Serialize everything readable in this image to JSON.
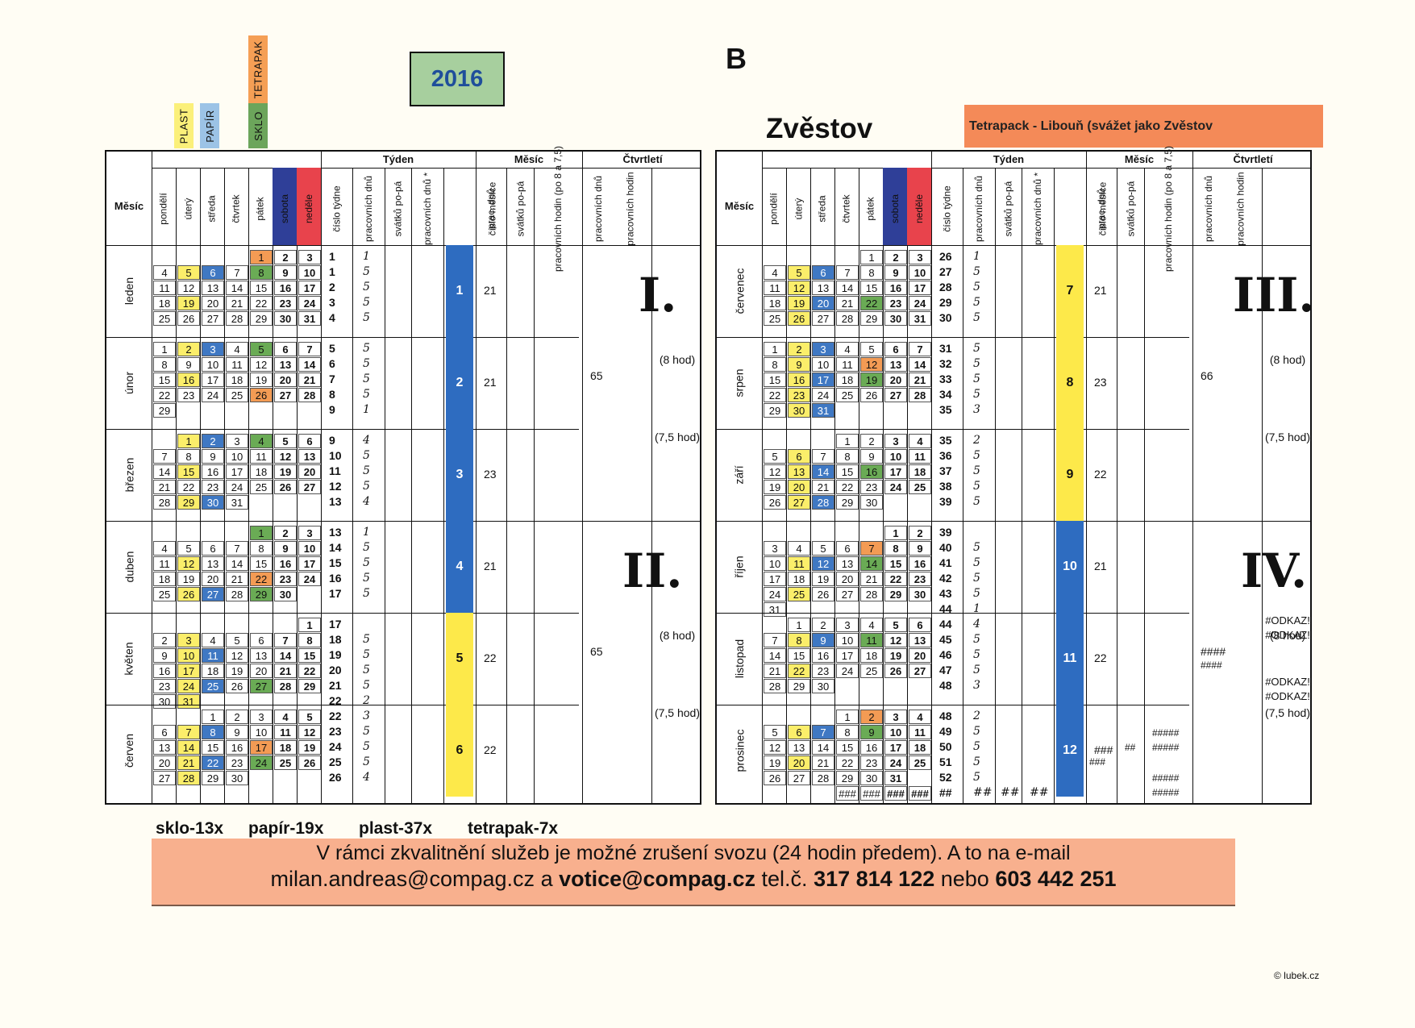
{
  "year": "2016",
  "zone": "B",
  "town": "Zvěstov",
  "tetrapack_note": "Tetrapack - Libouň (svážet jako Zvěstov",
  "legend": [
    {
      "label": "PLAST",
      "color": "#fbf07a"
    },
    {
      "label": "PAPÍR",
      "color": "#9cc3e6"
    },
    {
      "label": "SKLO",
      "color": "#6ca55b"
    },
    {
      "label": "TETRAPAK",
      "color": "#f59f55"
    }
  ],
  "colors": {
    "plast": "#fbee6a",
    "papir": "#3f78c3",
    "sklo": "#6aab55",
    "tetrapak": "#f39b54",
    "sobota": "#2f3f98",
    "nedele": "#e8434c",
    "month_yellow": "#fde94a",
    "month_blue": "#2e6cc0"
  },
  "headers": {
    "mesic": "Měsíc",
    "tyden": "Týden",
    "mesic_group": "Měsíc",
    "ctvrtleti": "Čtvrtletí",
    "days": [
      "pondělí",
      "úterý",
      "středa",
      "čtvrtek",
      "pátek",
      "sobota",
      "neděle"
    ],
    "week_cols": [
      "číslo týdne",
      "pracovních dnů",
      "svátků po-pá",
      "pracovních dnů *"
    ],
    "month_cols": [
      "číslo měsíce",
      "prac. dnů",
      "svátků po-pá",
      "pracovních hodin (po 8 a 7,5)"
    ],
    "quarter_cols": [
      "pracovních dnů",
      "pracovních hodin"
    ]
  },
  "left_months": [
    {
      "name": "leden",
      "num": "1",
      "color": "blue",
      "workdays": "21",
      "rows": [
        [
          "",
          "",
          "",
          "",
          "1",
          "2",
          "3"
        ],
        [
          "4",
          "5",
          "6",
          "7",
          "8",
          "9",
          "10"
        ],
        [
          "11",
          "12",
          "13",
          "14",
          "15",
          "16",
          "17"
        ],
        [
          "18",
          "19",
          "20",
          "21",
          "22",
          "23",
          "24"
        ],
        [
          "25",
          "26",
          "27",
          "28",
          "29",
          "30",
          "31"
        ]
      ],
      "weeks": [
        [
          "1",
          "1"
        ],
        [
          "1",
          "5"
        ],
        [
          "2",
          "5"
        ],
        [
          "3",
          "5"
        ],
        [
          "4",
          "5"
        ]
      ],
      "marks": {
        "0-4": "tetrapak",
        "1-1": "plast",
        "1-2": "papir",
        "1-4": "sklo",
        "3-1": "plast"
      }
    },
    {
      "name": "únor",
      "num": "2",
      "color": "blue",
      "workdays": "21",
      "rows": [
        [
          "1",
          "2",
          "3",
          "4",
          "5",
          "6",
          "7"
        ],
        [
          "8",
          "9",
          "10",
          "11",
          "12",
          "13",
          "14"
        ],
        [
          "15",
          "16",
          "17",
          "18",
          "19",
          "20",
          "21"
        ],
        [
          "22",
          "23",
          "24",
          "25",
          "26",
          "27",
          "28"
        ],
        [
          "29",
          "",
          "",
          "",
          "",
          "",
          ""
        ]
      ],
      "weeks": [
        [
          "5",
          "5"
        ],
        [
          "6",
          "5"
        ],
        [
          "7",
          "5"
        ],
        [
          "8",
          "5"
        ],
        [
          "9",
          "1"
        ]
      ],
      "marks": {
        "0-1": "plast",
        "0-2": "papir",
        "0-4": "sklo",
        "2-1": "plast",
        "3-4": "tetrapak"
      }
    },
    {
      "name": "březen",
      "num": "3",
      "color": "blue",
      "workdays": "23",
      "rows": [
        [
          "",
          "1",
          "2",
          "3",
          "4",
          "5",
          "6"
        ],
        [
          "7",
          "8",
          "9",
          "10",
          "11",
          "12",
          "13"
        ],
        [
          "14",
          "15",
          "16",
          "17",
          "18",
          "19",
          "20"
        ],
        [
          "21",
          "22",
          "23",
          "24",
          "25",
          "26",
          "27"
        ],
        [
          "28",
          "29",
          "30",
          "31",
          "",
          "",
          ""
        ]
      ],
      "weeks": [
        [
          "9",
          "4"
        ],
        [
          "10",
          "5"
        ],
        [
          "11",
          "5"
        ],
        [
          "12",
          "5"
        ],
        [
          "13",
          "4"
        ]
      ],
      "marks": {
        "0-1": "plast",
        "0-2": "papir",
        "0-4": "sklo",
        "2-1": "plast",
        "4-1": "plast",
        "4-2": "papir"
      }
    },
    {
      "name": "duben",
      "num": "4",
      "color": "blue",
      "workdays": "21",
      "rows": [
        [
          "",
          "",
          "",
          "",
          "1",
          "2",
          "3"
        ],
        [
          "4",
          "5",
          "6",
          "7",
          "8",
          "9",
          "10"
        ],
        [
          "11",
          "12",
          "13",
          "14",
          "15",
          "16",
          "17"
        ],
        [
          "18",
          "19",
          "20",
          "21",
          "22",
          "23",
          "24"
        ],
        [
          "25",
          "26",
          "27",
          "28",
          "29",
          "30",
          ""
        ]
      ],
      "weeks": [
        [
          "13",
          "1"
        ],
        [
          "14",
          "5"
        ],
        [
          "15",
          "5"
        ],
        [
          "16",
          "5"
        ],
        [
          "17",
          "5"
        ]
      ],
      "marks": {
        "0-4": "sklo",
        "2-1": "plast",
        "3-4": "tetrapak",
        "4-1": "plast",
        "4-2": "papir",
        "4-4": "sklo"
      }
    },
    {
      "name": "květen",
      "num": "5",
      "color": "yellow",
      "workdays": "22",
      "rows": [
        [
          "",
          "",
          "",
          "",
          "",
          "",
          "1"
        ],
        [
          "2",
          "3",
          "4",
          "5",
          "6",
          "7",
          "8"
        ],
        [
          "9",
          "10",
          "11",
          "12",
          "13",
          "14",
          "15"
        ],
        [
          "16",
          "17",
          "18",
          "19",
          "20",
          "21",
          "22"
        ],
        [
          "23",
          "24",
          "25",
          "26",
          "27",
          "28",
          "29"
        ],
        [
          "30",
          "31",
          "",
          "",
          "",
          "",
          ""
        ]
      ],
      "weeks": [
        [
          "17",
          ""
        ],
        [
          "18",
          "5"
        ],
        [
          "19",
          "5"
        ],
        [
          "20",
          "5"
        ],
        [
          "21",
          "5"
        ],
        [
          "22",
          "2"
        ]
      ],
      "marks": {
        "1-1": "plast",
        "2-1": "plast",
        "2-2": "papir",
        "3-1": "plast",
        "4-1": "plast",
        "4-2": "papir",
        "4-4": "sklo",
        "5-1": "plast"
      }
    },
    {
      "name": "červen",
      "num": "6",
      "color": "yellow",
      "workdays": "22",
      "rows": [
        [
          "",
          "",
          "1",
          "2",
          "3",
          "4",
          "5"
        ],
        [
          "6",
          "7",
          "8",
          "9",
          "10",
          "11",
          "12"
        ],
        [
          "13",
          "14",
          "15",
          "16",
          "17",
          "18",
          "19"
        ],
        [
          "20",
          "21",
          "22",
          "23",
          "24",
          "25",
          "26"
        ],
        [
          "27",
          "28",
          "29",
          "30",
          "",
          "",
          ""
        ]
      ],
      "weeks": [
        [
          "22",
          "3"
        ],
        [
          "23",
          "5"
        ],
        [
          "24",
          "5"
        ],
        [
          "25",
          "5"
        ],
        [
          "26",
          "4"
        ]
      ],
      "marks": {
        "1-1": "plast",
        "1-2": "papir",
        "2-1": "plast",
        "2-4": "tetrapak",
        "3-1": "plast",
        "3-2": "papir",
        "3-4": "sklo",
        "4-1": "plast"
      }
    }
  ],
  "right_months": [
    {
      "name": "červenec",
      "num": "7",
      "color": "yellow",
      "workdays": "21",
      "rows": [
        [
          "",
          "",
          "",
          "",
          "1",
          "2",
          "3"
        ],
        [
          "4",
          "5",
          "6",
          "7",
          "8",
          "9",
          "10"
        ],
        [
          "11",
          "12",
          "13",
          "14",
          "15",
          "16",
          "17"
        ],
        [
          "18",
          "19",
          "20",
          "21",
          "22",
          "23",
          "24"
        ],
        [
          "25",
          "26",
          "27",
          "28",
          "29",
          "30",
          "31"
        ]
      ],
      "weeks": [
        [
          "26",
          "1"
        ],
        [
          "27",
          "5"
        ],
        [
          "28",
          "5"
        ],
        [
          "29",
          "5"
        ],
        [
          "30",
          "5"
        ]
      ],
      "marks": {
        "1-1": "plast",
        "1-2": "papir",
        "2-1": "plast",
        "3-1": "plast",
        "3-2": "papir",
        "3-4": "sklo",
        "4-1": "plast"
      }
    },
    {
      "name": "srpen",
      "num": "8",
      "color": "yellow",
      "workdays": "23",
      "rows": [
        [
          "1",
          "2",
          "3",
          "4",
          "5",
          "6",
          "7"
        ],
        [
          "8",
          "9",
          "10",
          "11",
          "12",
          "13",
          "14"
        ],
        [
          "15",
          "16",
          "17",
          "18",
          "19",
          "20",
          "21"
        ],
        [
          "22",
          "23",
          "24",
          "25",
          "26",
          "27",
          "28"
        ],
        [
          "29",
          "30",
          "31",
          "",
          "",
          "",
          ""
        ]
      ],
      "weeks": [
        [
          "31",
          "5"
        ],
        [
          "32",
          "5"
        ],
        [
          "33",
          "5"
        ],
        [
          "34",
          "5"
        ],
        [
          "35",
          "3"
        ]
      ],
      "marks": {
        "0-1": "plast",
        "0-2": "papir",
        "1-1": "plast",
        "1-4": "tetrapak",
        "2-1": "plast",
        "2-2": "papir",
        "2-4": "sklo",
        "3-1": "plast",
        "4-1": "plast",
        "4-2": "papir"
      }
    },
    {
      "name": "září",
      "num": "9",
      "color": "yellow",
      "workdays": "22",
      "rows": [
        [
          "",
          "",
          "",
          "1",
          "2",
          "3",
          "4"
        ],
        [
          "5",
          "6",
          "7",
          "8",
          "9",
          "10",
          "11"
        ],
        [
          "12",
          "13",
          "14",
          "15",
          "16",
          "17",
          "18"
        ],
        [
          "19",
          "20",
          "21",
          "22",
          "23",
          "24",
          "25"
        ],
        [
          "26",
          "27",
          "28",
          "29",
          "30",
          "",
          ""
        ]
      ],
      "weeks": [
        [
          "35",
          "2"
        ],
        [
          "36",
          "5"
        ],
        [
          "37",
          "5"
        ],
        [
          "38",
          "5"
        ],
        [
          "39",
          "5"
        ]
      ],
      "marks": {
        "1-1": "plast",
        "2-1": "plast",
        "2-2": "papir",
        "2-4": "sklo",
        "3-1": "plast",
        "4-1": "plast",
        "4-2": "papir"
      }
    },
    {
      "name": "říjen",
      "num": "10",
      "color": "blue",
      "workdays": "21",
      "rows": [
        [
          "",
          "",
          "",
          "",
          "",
          "1",
          "2"
        ],
        [
          "3",
          "4",
          "5",
          "6",
          "7",
          "8",
          "9"
        ],
        [
          "10",
          "11",
          "12",
          "13",
          "14",
          "15",
          "16"
        ],
        [
          "17",
          "18",
          "19",
          "20",
          "21",
          "22",
          "23"
        ],
        [
          "24",
          "25",
          "26",
          "27",
          "28",
          "29",
          "30"
        ],
        [
          "31",
          "",
          "",
          "",
          "",
          "",
          ""
        ]
      ],
      "weeks": [
        [
          "39",
          ""
        ],
        [
          "40",
          "5"
        ],
        [
          "41",
          "5"
        ],
        [
          "42",
          "5"
        ],
        [
          "43",
          "5"
        ],
        [
          "44",
          "1"
        ]
      ],
      "marks": {
        "1-4": "tetrapak",
        "2-1": "plast",
        "2-2": "papir",
        "2-4": "sklo",
        "4-1": "plast"
      }
    },
    {
      "name": "listopad",
      "num": "11",
      "color": "blue",
      "workdays": "22",
      "rows": [
        [
          "",
          "1",
          "2",
          "3",
          "4",
          "5",
          "6"
        ],
        [
          "7",
          "8",
          "9",
          "10",
          "11",
          "12",
          "13"
        ],
        [
          "14",
          "15",
          "16",
          "17",
          "18",
          "19",
          "20"
        ],
        [
          "21",
          "22",
          "23",
          "24",
          "25",
          "26",
          "27"
        ],
        [
          "28",
          "29",
          "30",
          "",
          "",
          "",
          ""
        ]
      ],
      "weeks": [
        [
          "44",
          "4"
        ],
        [
          "45",
          "5"
        ],
        [
          "46",
          "5"
        ],
        [
          "47",
          "5"
        ],
        [
          "48",
          "3"
        ]
      ],
      "marks": {
        "1-1": "plast",
        "1-2": "papir",
        "1-4": "sklo",
        "3-1": "plast"
      }
    },
    {
      "name": "prosinec",
      "num": "12",
      "color": "blue",
      "workdays": "###",
      "rows": [
        [
          "",
          "",
          "",
          "1",
          "2",
          "3",
          "4"
        ],
        [
          "5",
          "6",
          "7",
          "8",
          "9",
          "10",
          "11"
        ],
        [
          "12",
          "13",
          "14",
          "15",
          "16",
          "17",
          "18"
        ],
        [
          "19",
          "20",
          "21",
          "22",
          "23",
          "24",
          "25"
        ],
        [
          "26",
          "27",
          "28",
          "29",
          "30",
          "31",
          ""
        ],
        [
          "",
          "",
          "",
          "###",
          "###",
          "###",
          "###"
        ]
      ],
      "weeks": [
        [
          "48",
          "2"
        ],
        [
          "49",
          "5"
        ],
        [
          "50",
          "5"
        ],
        [
          "51",
          "5"
        ],
        [
          "52",
          "5"
        ],
        [
          "##",
          "##"
        ]
      ],
      "marks": {
        "0-4": "tetrapak",
        "1-1": "plast",
        "1-2": "papir",
        "1-4": "sklo",
        "3-1": "plast"
      }
    }
  ],
  "left_quarters": [
    {
      "roman": "I.",
      "workdays": "65",
      "h8": "(8 hod)",
      "h75": "(7,5 hod)"
    },
    {
      "roman": "II.",
      "workdays": "65",
      "h8": "(8 hod)",
      "h75": "(7,5 hod)"
    }
  ],
  "right_quarters": [
    {
      "roman": "III.",
      "workdays": "66",
      "h8": "(8 hod)",
      "h75": "(7,5 hod)"
    },
    {
      "roman": "IV.",
      "workdays": "####",
      "workdays2": "####",
      "odkaz": "#ODKAZ!",
      "h8": "(8 hod)",
      "h75": "(7,5 hod)"
    }
  ],
  "dec_extra": {
    "svatky": "##",
    "hodiny": "#####",
    "workdays2": "###",
    "last_row_week": "##"
  },
  "counts": {
    "sklo": "sklo-13x",
    "papir": "papír-19x",
    "plast": "plast-37x",
    "tetrapak": "tetrapak-7x"
  },
  "footer": {
    "line1": "V rámci zkvalitnění služeb je možné zrušení svozu (24 hodin předem). A to na e-mail",
    "email1": "milan.andreas@compag.cz",
    "and": "a",
    "email2": "votice@compag.cz",
    "tel_label": "tel.č.",
    "phone1": "317 814 122",
    "or": "nebo",
    "phone2": "603 442 251"
  },
  "copyright": "© lubek.cz"
}
